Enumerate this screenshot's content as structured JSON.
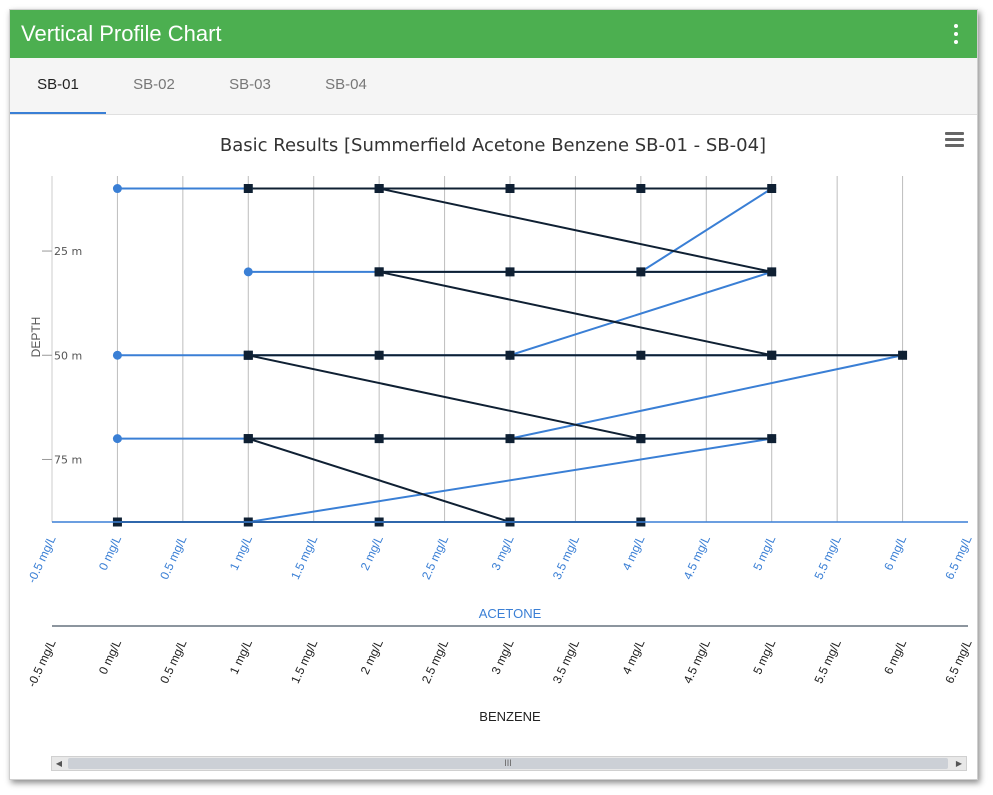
{
  "window": {
    "title": "Vertical Profile Chart",
    "menu_icon": "kebab-menu-icon"
  },
  "tabs": [
    {
      "label": "SB-01",
      "active": true
    },
    {
      "label": "SB-02",
      "active": false
    },
    {
      "label": "SB-03",
      "active": false
    },
    {
      "label": "SB-04",
      "active": false
    }
  ],
  "colors": {
    "header": "#4caf50",
    "acetone": "#3a7fd5",
    "benzene": "#0f2033",
    "tab_underline": "#3a7fd5"
  },
  "chart_data": {
    "type": "line",
    "title": "Basic Results [Summerfield Acetone Benzene SB-01 - SB-04]",
    "ylabel": "DEPTH",
    "y_ticks": [
      "25 m",
      "50 m",
      "75 m"
    ],
    "y_tick_values": [
      25,
      50,
      75
    ],
    "ylim": [
      7,
      90
    ],
    "y_reversed": true,
    "x_axes": [
      {
        "label": "ACETONE",
        "color": "#3a7fd5",
        "ticks": [
          "-0.5 mg/L",
          "0 mg/L",
          "0.5 mg/L",
          "1 mg/L",
          "1.5 mg/L",
          "2 mg/L",
          "2.5 mg/L",
          "3 mg/L",
          "3.5 mg/L",
          "4 mg/L",
          "4.5 mg/L",
          "5 mg/L",
          "5.5 mg/L",
          "6 mg/L",
          "6.5 mg/L"
        ],
        "range": [
          -0.5,
          6.5
        ]
      },
      {
        "label": "BENZENE",
        "color": "#222222",
        "ticks": [
          "-0.5 mg/L",
          "0 mg/L",
          "0.5 mg/L",
          "1 mg/L",
          "1.5 mg/L",
          "2 mg/L",
          "2.5 mg/L",
          "3 mg/L",
          "3.5 mg/L",
          "4 mg/L",
          "4.5 mg/L",
          "5 mg/L",
          "5.5 mg/L",
          "6 mg/L",
          "6.5 mg/L"
        ],
        "range": [
          -0.5,
          6.5
        ]
      }
    ],
    "grid": true,
    "series": [
      {
        "color": "#3a7fd5",
        "marker": "circle",
        "points": [
          [
            0,
            10
          ],
          [
            1,
            10
          ],
          [
            2,
            10
          ],
          [
            3,
            10
          ],
          [
            4,
            10
          ],
          [
            5,
            10
          ],
          [
            4,
            30
          ],
          [
            1,
            30
          ],
          [
            2,
            30
          ],
          [
            3,
            30
          ],
          [
            4,
            30
          ],
          [
            5,
            30
          ],
          [
            3,
            50
          ],
          [
            0,
            50
          ],
          [
            1,
            50
          ],
          [
            2,
            50
          ],
          [
            3,
            50
          ],
          [
            4,
            50
          ],
          [
            5,
            50
          ],
          [
            6,
            50
          ],
          [
            3,
            70
          ],
          [
            0,
            70
          ],
          [
            1,
            70
          ],
          [
            2,
            70
          ],
          [
            3,
            70
          ],
          [
            4,
            70
          ],
          [
            5,
            70
          ],
          [
            1,
            90
          ],
          [
            0,
            90
          ],
          [
            2,
            90
          ],
          [
            3,
            90
          ],
          [
            4,
            90
          ]
        ]
      },
      {
        "color": "#0f2033",
        "marker": "square",
        "points": [
          [
            1,
            10
          ],
          [
            2,
            10
          ],
          [
            3,
            10
          ],
          [
            4,
            10
          ],
          [
            5,
            10
          ],
          [
            2,
            10
          ],
          [
            5,
            30
          ],
          [
            2,
            30
          ],
          [
            3,
            30
          ],
          [
            4,
            30
          ],
          [
            2,
            30
          ],
          [
            5,
            50
          ],
          [
            1,
            50
          ],
          [
            2,
            50
          ],
          [
            3,
            50
          ],
          [
            4,
            50
          ],
          [
            5,
            50
          ],
          [
            6,
            50
          ],
          [
            1,
            50
          ],
          [
            4,
            70
          ],
          [
            1,
            70
          ],
          [
            2,
            70
          ],
          [
            3,
            70
          ],
          [
            4,
            70
          ],
          [
            5,
            70
          ],
          [
            1,
            70
          ],
          [
            3,
            90
          ],
          [
            0,
            90
          ],
          [
            1,
            90
          ],
          [
            2,
            90
          ],
          [
            4,
            90
          ]
        ]
      }
    ]
  }
}
